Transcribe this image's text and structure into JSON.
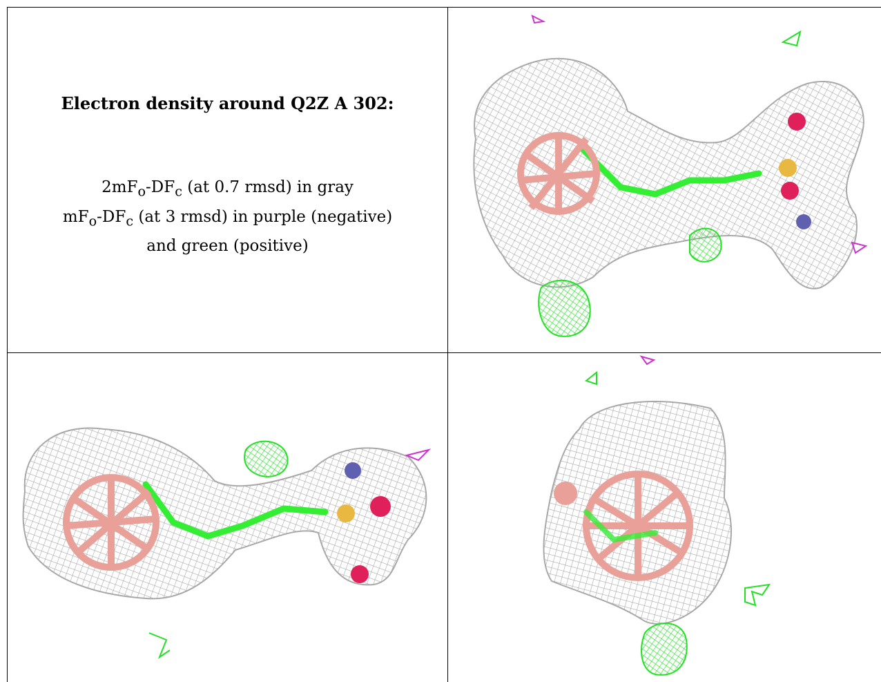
{
  "caption": {
    "title": "Electron density around Q2Z A 302:",
    "legend": [
      {
        "prefix": "2mF",
        "sub1": "o",
        "mid": "-DF",
        "sub2": "c",
        "suffix": " (at 0.7 rmsd) in gray"
      },
      {
        "prefix": "mF",
        "sub1": "o",
        "mid": "-DF",
        "sub2": "c",
        "suffix": " (at 3 rmsd) in purple (negative)"
      },
      {
        "text": "and green (positive)"
      }
    ]
  },
  "colors": {
    "mesh_2fofc": "#a8a8a8",
    "mesh_fofc_positive": "#22e022",
    "mesh_fofc_negative": "#cc33cc",
    "carbon_ligand": "#33ee33",
    "carborane_cage": "#e8a098",
    "sulfur": "#e8b840",
    "oxygen": "#e0205a",
    "nitrogen": "#6060b0"
  },
  "views": [
    {
      "id": "view-1",
      "label": ""
    },
    {
      "id": "view-2",
      "label": ""
    },
    {
      "id": "view-3",
      "label": ""
    }
  ]
}
